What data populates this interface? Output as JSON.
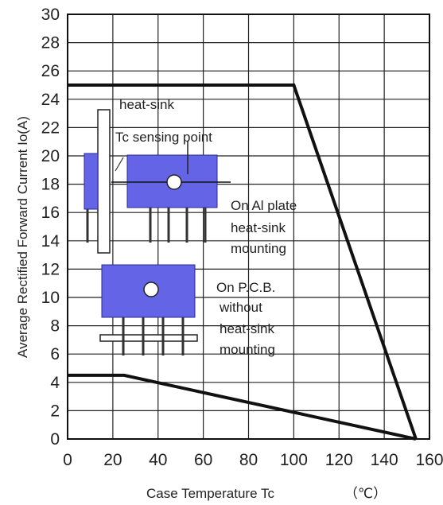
{
  "chart_data": {
    "type": "line",
    "title": "",
    "xlabel": "Case Temperature Tc",
    "xlabel_unit": "（℃）",
    "ylabel": "Average Rectified Forward Current Io(A)",
    "xlim": [
      0,
      160
    ],
    "ylim": [
      0,
      30
    ],
    "x_ticks": [
      "0",
      "20",
      "40",
      "60",
      "80",
      "100",
      "120",
      "140",
      "160"
    ],
    "y_ticks": [
      "0",
      "2",
      "4",
      "6",
      "8",
      "10",
      "12",
      "14",
      "16",
      "18",
      "20",
      "22",
      "24",
      "26",
      "28",
      "30"
    ],
    "grid": true,
    "series": [
      {
        "name": "On Al plate heat-sink mounting",
        "x": [
          0,
          100,
          154
        ],
        "y": [
          25,
          25,
          0
        ]
      },
      {
        "name": "On P.C.B. without heat-sink mounting",
        "x": [
          0,
          25,
          154
        ],
        "y": [
          4.5,
          4.5,
          0
        ]
      }
    ],
    "annotations": {
      "heat_sink": "heat-sink",
      "tc_point": "Tc sensing point",
      "al_plate": [
        "On Al plate",
        "heat-sink",
        "mounting"
      ],
      "pcb": [
        "On P.C.B.",
        "without",
        "heat-sink",
        "mounting"
      ]
    },
    "colors": {
      "component": "#6464e6",
      "component_edge": "#2a2a90",
      "curve": "#111111",
      "grid": "#222222"
    }
  }
}
